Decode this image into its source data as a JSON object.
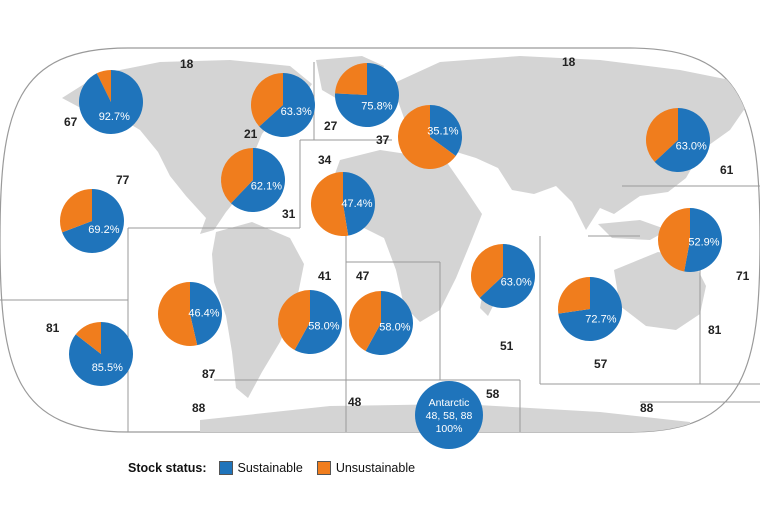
{
  "colors": {
    "sustainable": "#1f74bb",
    "unsustainable": "#f07d1d",
    "land": "#d4d4d4",
    "border": "#9a9a9a"
  },
  "legend": {
    "title": "Stock status:",
    "items": [
      {
        "label": "Sustainable",
        "color": "#1f74bb"
      },
      {
        "label": "Unsustainable",
        "color": "#f07d1d"
      }
    ]
  },
  "area_labels": [
    "18",
    "18",
    "67",
    "21",
    "27",
    "37",
    "34",
    "77",
    "31",
    "61",
    "41",
    "47",
    "71",
    "81",
    "51",
    "57",
    "81",
    "87",
    "88",
    "48",
    "58",
    "88"
  ],
  "chart_data": {
    "type": "pie",
    "series": [
      {
        "label": "92.7%",
        "sustainable": 92.7,
        "unsustainable": 7.3
      },
      {
        "label": "63.3%",
        "sustainable": 63.3,
        "unsustainable": 36.7
      },
      {
        "label": "75.8%",
        "sustainable": 75.8,
        "unsustainable": 24.2
      },
      {
        "label": "35.1%",
        "sustainable": 35.1,
        "unsustainable": 64.9
      },
      {
        "label": "63.0%",
        "sustainable": 63.0,
        "unsustainable": 37.0
      },
      {
        "label": "62.1%",
        "sustainable": 62.1,
        "unsustainable": 37.9
      },
      {
        "label": "47.4%",
        "sustainable": 47.4,
        "unsustainable": 52.6
      },
      {
        "label": "69.2%",
        "sustainable": 69.2,
        "unsustainable": 30.8
      },
      {
        "label": "52.9%",
        "sustainable": 52.9,
        "unsustainable": 47.1
      },
      {
        "label": "63.0%",
        "sustainable": 63.0,
        "unsustainable": 37.0
      },
      {
        "label": "46.4%",
        "sustainable": 46.4,
        "unsustainable": 53.6
      },
      {
        "label": "58.0%",
        "sustainable": 58.0,
        "unsustainable": 42.0
      },
      {
        "label": "58.0%",
        "sustainable": 58.0,
        "unsustainable": 42.0
      },
      {
        "label": "72.7%",
        "sustainable": 72.7,
        "unsustainable": 27.3
      },
      {
        "label": "85.5%",
        "sustainable": 85.5,
        "unsustainable": 14.5
      }
    ],
    "antarctic": {
      "lines": [
        "Antarctic",
        "48, 58, 88",
        "100%"
      ],
      "sustainable": 100,
      "unsustainable": 0
    }
  }
}
